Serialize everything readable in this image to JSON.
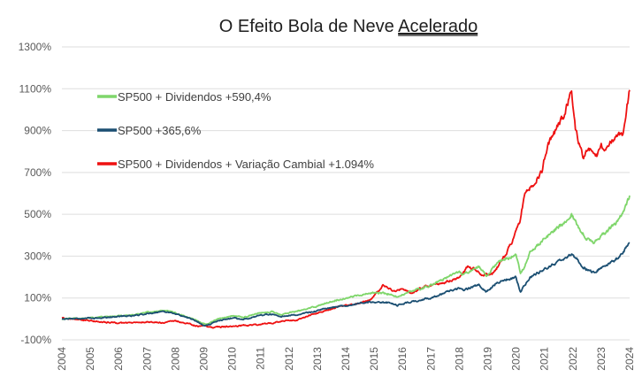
{
  "chart_data": {
    "type": "line",
    "title_parts": [
      "O Efeito Bola de Neve ",
      "Acelerado"
    ],
    "xlabel": "",
    "ylabel": "",
    "ylim": [
      -100,
      1300
    ],
    "yticks": [
      -100,
      100,
      300,
      500,
      700,
      900,
      1100,
      1300
    ],
    "ytick_labels": [
      "-100%",
      "100%",
      "300%",
      "500%",
      "700%",
      "900%",
      "1100%",
      "1300%"
    ],
    "xlim": [
      2004,
      2024
    ],
    "xticks": [
      "2004",
      "2005",
      "2006",
      "2007",
      "2008",
      "2009",
      "2010",
      "2011",
      "2012",
      "2013",
      "2014",
      "2015",
      "2016",
      "2017",
      "2018",
      "2019",
      "2020",
      "2021",
      "2022",
      "2023",
      "2024"
    ],
    "grid": true,
    "legend_position": "top-left",
    "series": [
      {
        "name": "SP500 + Dividendos +590,4%",
        "color": "#7fd66b",
        "x": [
          2004,
          2004.5,
          2005,
          2005.5,
          2006,
          2006.5,
          2007,
          2007.5,
          2007.8,
          2008.3,
          2008.7,
          2009.0,
          2009.2,
          2009.5,
          2010.0,
          2010.4,
          2010.7,
          2011.0,
          2011.4,
          2011.7,
          2012.0,
          2012.5,
          2013.0,
          2013.5,
          2014.0,
          2014.5,
          2015.0,
          2015.5,
          2015.8,
          2016.0,
          2016.5,
          2017.0,
          2017.5,
          2018.0,
          2018.1,
          2018.7,
          2018.95,
          2019.3,
          2019.6,
          2020.0,
          2020.15,
          2020.25,
          2020.5,
          2020.9,
          2021.3,
          2021.7,
          2021.95,
          2022.2,
          2022.45,
          2022.75,
          2023.0,
          2023.3,
          2023.6,
          2023.8,
          2024.0
        ],
        "values": [
          0,
          3,
          5,
          10,
          15,
          20,
          30,
          40,
          37,
          15,
          -5,
          -25,
          -20,
          0,
          15,
          8,
          20,
          30,
          35,
          20,
          30,
          42,
          62,
          85,
          100,
          115,
          125,
          120,
          105,
          115,
          140,
          160,
          195,
          225,
          210,
          250,
          205,
          260,
          285,
          305,
          220,
          240,
          320,
          370,
          420,
          460,
          500,
          440,
          390,
          360,
          400,
          430,
          470,
          520,
          590
        ]
      },
      {
        "name": "SP500 +365,6%",
        "color": "#1b4f72",
        "x": [
          2004,
          2004.5,
          2005,
          2005.5,
          2006,
          2006.5,
          2007,
          2007.5,
          2007.8,
          2008.3,
          2008.7,
          2009.0,
          2009.2,
          2009.5,
          2010.0,
          2010.4,
          2010.7,
          2011.0,
          2011.4,
          2011.7,
          2012.0,
          2012.5,
          2013.0,
          2013.5,
          2014.0,
          2014.5,
          2015.0,
          2015.5,
          2015.8,
          2016.0,
          2016.5,
          2017.0,
          2017.5,
          2018.0,
          2018.1,
          2018.7,
          2018.95,
          2019.3,
          2019.6,
          2020.0,
          2020.15,
          2020.25,
          2020.5,
          2020.9,
          2021.3,
          2021.7,
          2021.95,
          2022.2,
          2022.45,
          2022.75,
          2023.0,
          2023.3,
          2023.6,
          2023.8,
          2024.0
        ],
        "values": [
          0,
          2,
          3,
          7,
          12,
          16,
          25,
          35,
          32,
          12,
          -8,
          -30,
          -27,
          -10,
          5,
          -2,
          8,
          18,
          22,
          8,
          15,
          25,
          40,
          55,
          65,
          75,
          82,
          78,
          65,
          72,
          88,
          100,
          125,
          145,
          135,
          165,
          130,
          170,
          185,
          200,
          130,
          150,
          200,
          230,
          260,
          285,
          310,
          275,
          240,
          220,
          245,
          265,
          290,
          320,
          365
        ]
      },
      {
        "name": "SP500 + Dividendos + Variação Cambial +1.094%",
        "color": "#ee1111",
        "x": [
          2004,
          2004.5,
          2005,
          2005.5,
          2006,
          2006.5,
          2007,
          2007.5,
          2008.0,
          2008.5,
          2008.8,
          2009.0,
          2009.3,
          2009.6,
          2010.0,
          2010.5,
          2011.0,
          2011.5,
          2011.8,
          2012.3,
          2012.8,
          2013.3,
          2013.8,
          2014.3,
          2014.8,
          2015.0,
          2015.3,
          2015.7,
          2016.0,
          2016.3,
          2016.7,
          2017.0,
          2017.5,
          2018.0,
          2018.3,
          2018.5,
          2018.8,
          2019.2,
          2019.6,
          2019.9,
          2020.15,
          2020.3,
          2020.6,
          2020.9,
          2021.1,
          2021.4,
          2021.7,
          2021.95,
          2022.1,
          2022.35,
          2022.6,
          2022.8,
          2023.0,
          2023.2,
          2023.5,
          2023.75,
          2024.0
        ],
        "values": [
          5,
          -2,
          -10,
          -15,
          -20,
          -18,
          -15,
          -18,
          -10,
          -25,
          -35,
          -30,
          -40,
          -38,
          -35,
          -30,
          -25,
          -18,
          -10,
          -5,
          20,
          40,
          60,
          70,
          90,
          110,
          160,
          130,
          150,
          120,
          150,
          160,
          175,
          195,
          250,
          240,
          210,
          220,
          300,
          380,
          470,
          600,
          640,
          700,
          830,
          900,
          980,
          1080,
          900,
          780,
          800,
          760,
          830,
          820,
          860,
          880,
          1094
        ]
      }
    ]
  }
}
